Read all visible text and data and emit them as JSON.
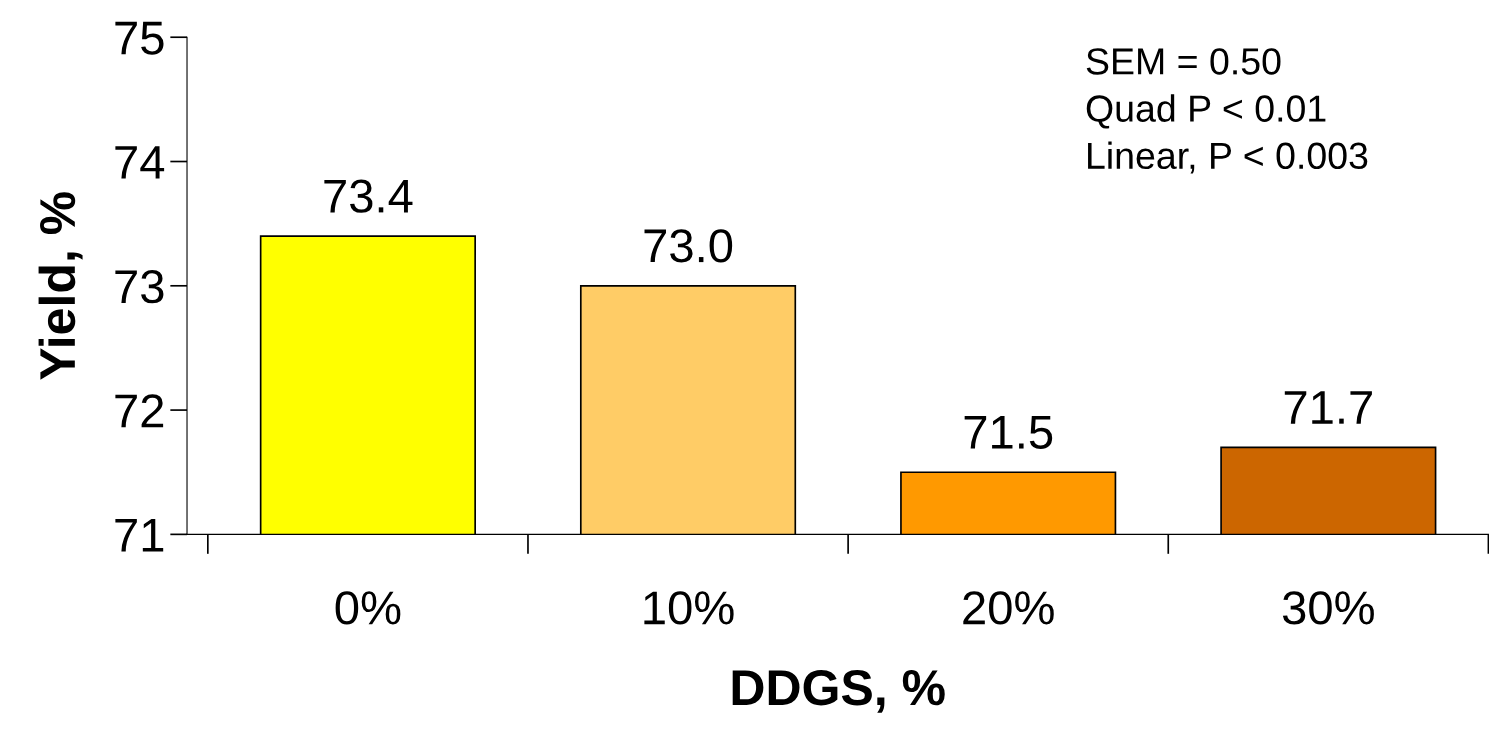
{
  "chart_data": {
    "type": "bar",
    "xlabel": "DDGS, %",
    "ylabel": "Yield, %",
    "categories": [
      "0%",
      "10%",
      "20%",
      "30%"
    ],
    "values": [
      73.4,
      73.0,
      71.5,
      71.7
    ],
    "colors": [
      "#ffff00",
      "#ffcc66",
      "#ff9900",
      "#cc6600"
    ],
    "value_labels": [
      "73.4",
      "73.0",
      "71.5",
      "71.7"
    ],
    "ylim": [
      71,
      75
    ],
    "yticks": [
      71,
      72,
      73,
      74,
      75
    ],
    "grid": false,
    "annotations": [
      "SEM = 0.50\nQuad P < 0.01\nLinear, P < 0.003"
    ]
  }
}
